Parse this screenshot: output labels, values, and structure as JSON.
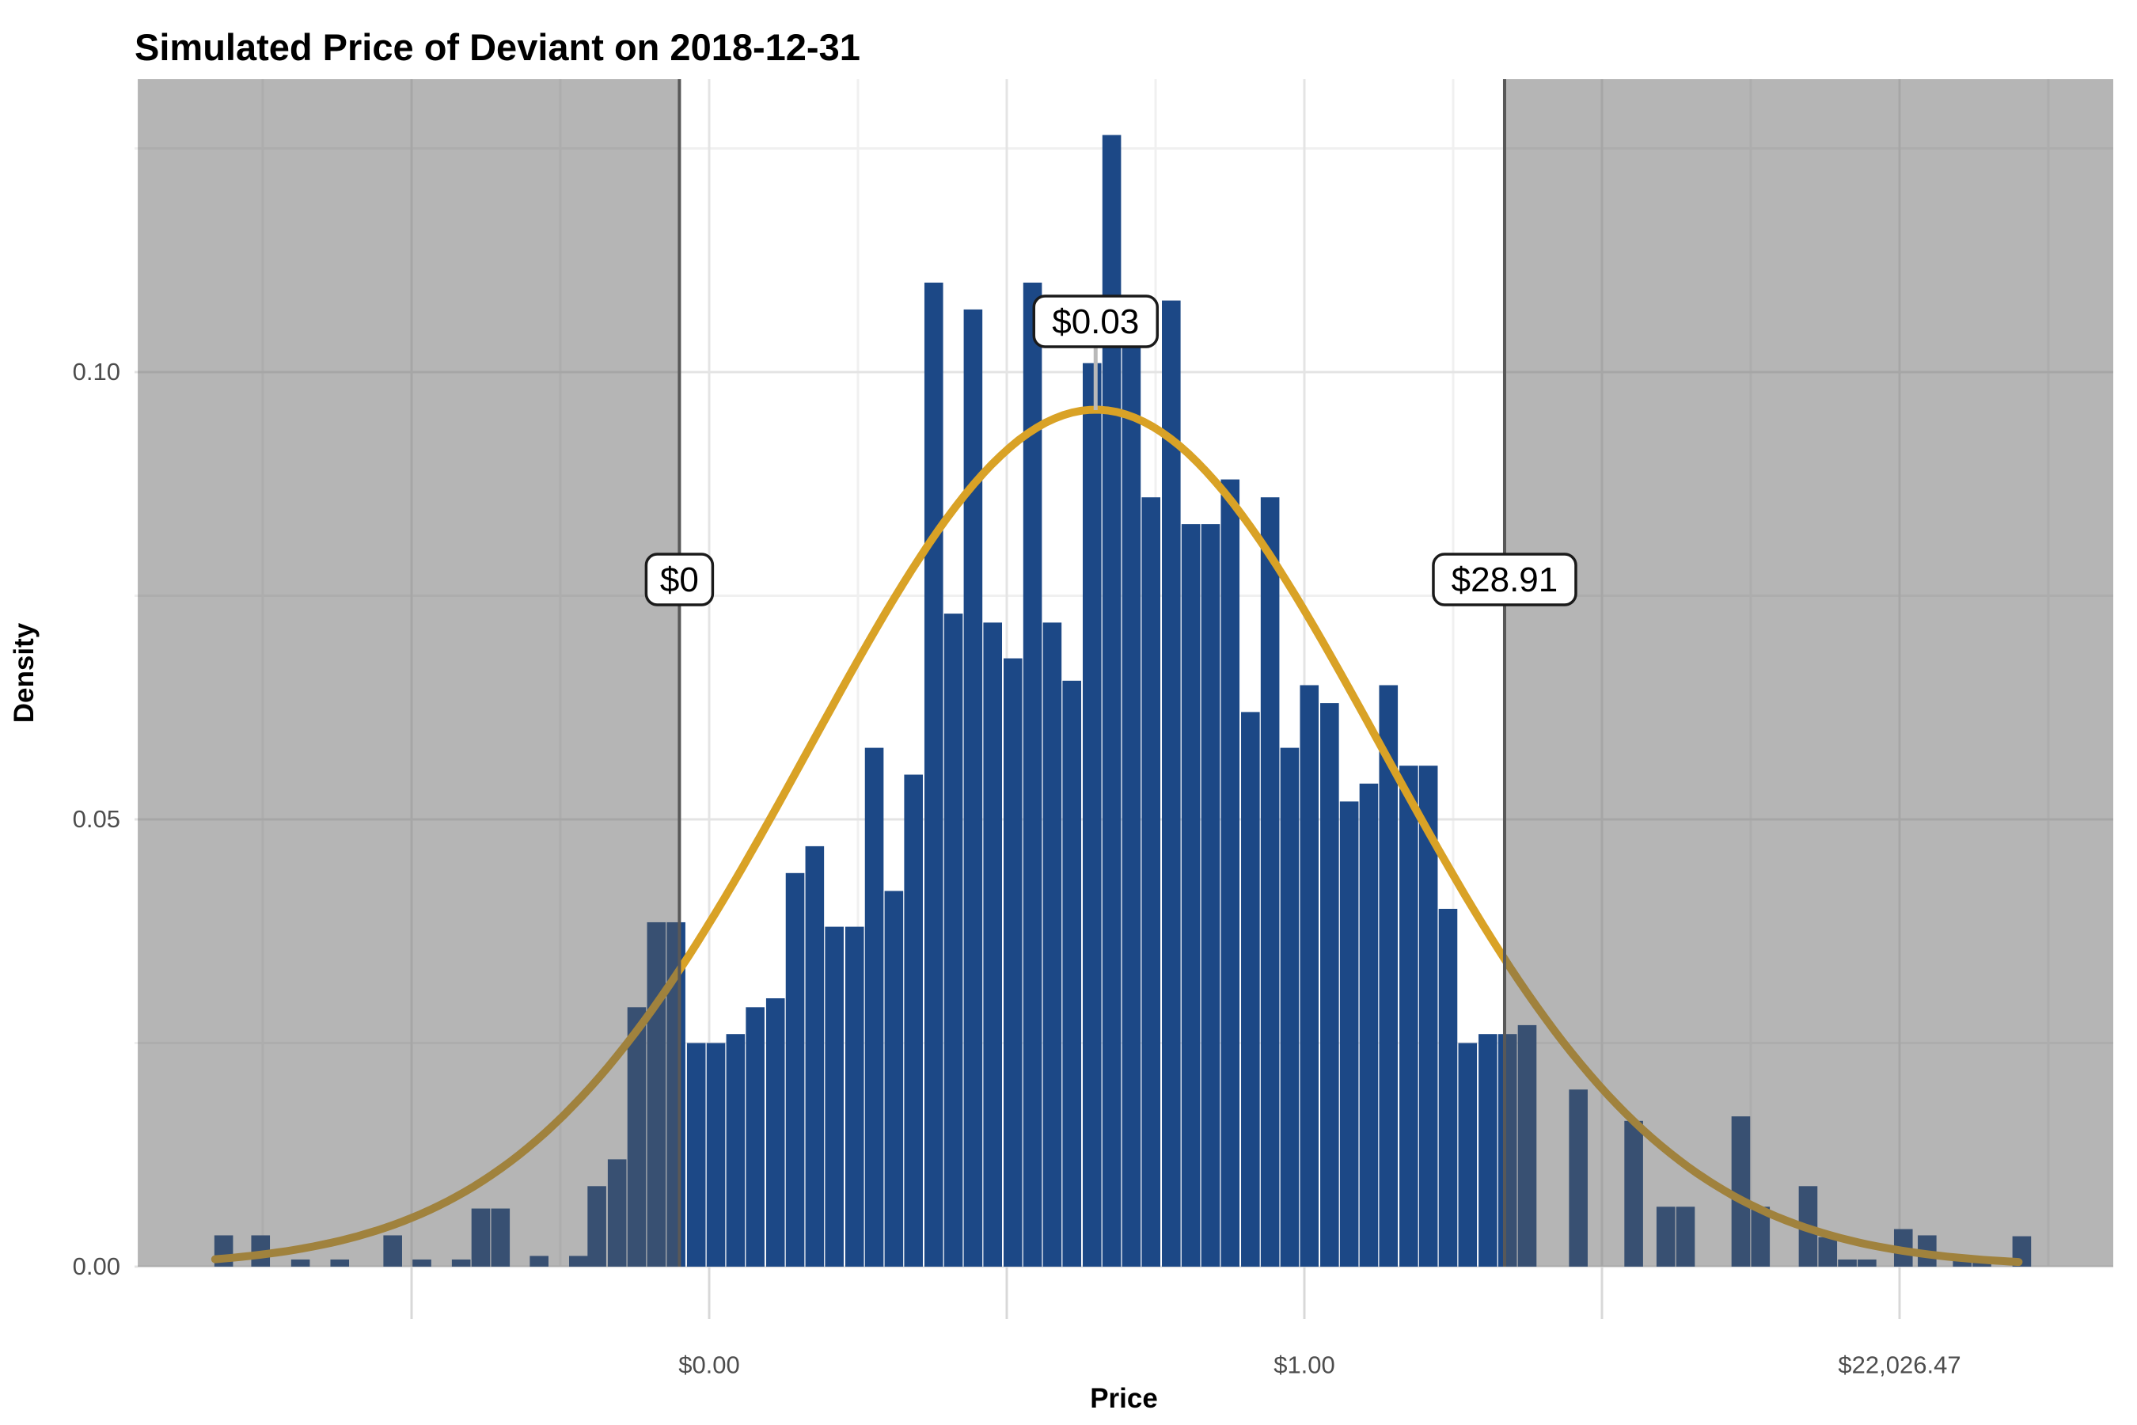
{
  "title": "Simulated Price of Deviant on 2018-12-31",
  "x_axis": {
    "label": "Price",
    "scale": "log-price",
    "major_breaks": [
      {
        "log": -15,
        "label": ""
      },
      {
        "log": -10,
        "label": "$0.00"
      },
      {
        "log": -5,
        "label": ""
      },
      {
        "log": 0,
        "label": "$1.00"
      },
      {
        "log": 5,
        "label": ""
      },
      {
        "log": 10,
        "label": "$22,026.47"
      }
    ],
    "minor_breaks": [
      -17.5,
      -12.5,
      -7.5,
      -2.5,
      2.5,
      7.5,
      12.5
    ],
    "range_log": [
      -19.6,
      13.6
    ]
  },
  "y_axis": {
    "label": "Density",
    "major_breaks": [
      {
        "value": 0.0,
        "label": "0.00"
      },
      {
        "value": 0.05,
        "label": "0.05"
      },
      {
        "value": 0.1,
        "label": "0.10"
      }
    ],
    "minor_breaks": [
      0.025,
      0.075,
      0.125
    ],
    "range": [
      0,
      0.1327
    ]
  },
  "annotations": {
    "lower_bound": {
      "label": "$0",
      "log": -10.5
    },
    "upper_bound": {
      "label": "$28.91",
      "log": 3.364
    },
    "mean": {
      "label": "$0.03",
      "log": -3.507
    }
  },
  "colors": {
    "bar_fill": "#1c4886",
    "curve": "#d9a226",
    "shade_overlay": "rgba(92,92,92,0.45)",
    "bound_line": "#585858",
    "mean_line": "#b9b9b9",
    "grid_major": "#e4e4e4",
    "grid_minor": "#f0f0f0",
    "tick_mark": "#d8d8d8",
    "axis_text": "#4d4d4d",
    "annotation_box_fill": "#ffffff",
    "annotation_box_border": "#1a1a1a"
  },
  "chart_data": {
    "type": "bar",
    "subtype": "histogram_with_density_curve",
    "title": "Simulated Price of Deviant on 2018-12-31",
    "xlabel": "Price",
    "ylabel": "Density",
    "x_units": "natural log of price (axis labeled in dollars)",
    "bin_width_log": 0.327,
    "bins": [
      [
        -18.15,
        0.0035
      ],
      [
        -17.53,
        0.0035
      ],
      [
        -16.86,
        0.0008
      ],
      [
        -16.2,
        0.0008
      ],
      [
        -15.31,
        0.0035
      ],
      [
        -14.82,
        0.0008
      ],
      [
        -14.16,
        0.0008
      ],
      [
        -13.83,
        0.0065
      ],
      [
        -13.5,
        0.0065
      ],
      [
        -12.85,
        0.0012
      ],
      [
        -12.19,
        0.0012
      ],
      [
        -11.88,
        0.009
      ],
      [
        -11.54,
        0.012
      ],
      [
        -11.21,
        0.029
      ],
      [
        -10.88,
        0.0385
      ],
      [
        -10.55,
        0.0385
      ],
      [
        -10.21,
        0.025
      ],
      [
        -9.88,
        0.025
      ],
      [
        -9.55,
        0.026
      ],
      [
        -9.22,
        0.029
      ],
      [
        -8.88,
        0.03
      ],
      [
        -8.55,
        0.044
      ],
      [
        -8.22,
        0.047
      ],
      [
        -7.89,
        0.038
      ],
      [
        -7.55,
        0.038
      ],
      [
        -7.22,
        0.058
      ],
      [
        -6.89,
        0.042
      ],
      [
        -6.56,
        0.055
      ],
      [
        -6.22,
        0.11
      ],
      [
        -5.89,
        0.073
      ],
      [
        -5.56,
        0.107
      ],
      [
        -5.23,
        0.072
      ],
      [
        -4.89,
        0.068
      ],
      [
        -4.56,
        0.11
      ],
      [
        -4.23,
        0.072
      ],
      [
        -3.9,
        0.0655
      ],
      [
        -3.56,
        0.101
      ],
      [
        -3.23,
        0.1265
      ],
      [
        -2.9,
        0.107
      ],
      [
        -2.57,
        0.086
      ],
      [
        -2.23,
        0.108
      ],
      [
        -1.9,
        0.083
      ],
      [
        -1.57,
        0.083
      ],
      [
        -1.24,
        0.088
      ],
      [
        -0.9,
        0.062
      ],
      [
        -0.57,
        0.086
      ],
      [
        -0.24,
        0.058
      ],
      [
        0.09,
        0.065
      ],
      [
        0.43,
        0.063
      ],
      [
        0.76,
        0.052
      ],
      [
        1.09,
        0.054
      ],
      [
        1.42,
        0.065
      ],
      [
        1.76,
        0.056
      ],
      [
        2.09,
        0.056
      ],
      [
        2.42,
        0.04
      ],
      [
        2.75,
        0.025
      ],
      [
        3.09,
        0.026
      ],
      [
        3.42,
        0.026
      ],
      [
        3.75,
        0.027
      ],
      [
        4.61,
        0.0198
      ],
      [
        5.54,
        0.0163
      ],
      [
        6.08,
        0.0067
      ],
      [
        6.41,
        0.0067
      ],
      [
        7.34,
        0.0168
      ],
      [
        7.67,
        0.0067
      ],
      [
        8.47,
        0.009
      ],
      [
        8.8,
        0.0033
      ],
      [
        9.13,
        0.0008
      ],
      [
        9.46,
        0.0008
      ],
      [
        10.07,
        0.0042
      ],
      [
        10.47,
        0.0035
      ],
      [
        11.06,
        0.0008
      ],
      [
        11.39,
        0.0008
      ],
      [
        12.06,
        0.0034
      ]
    ],
    "density_curve": {
      "type": "normal",
      "mean_log": -3.507,
      "sd_log": 4.8,
      "peak_density": 0.0958,
      "range_log": [
        -18.3,
        12.1
      ]
    },
    "shaded_regions_log": [
      [
        -19.6,
        -10.5
      ],
      [
        3.364,
        13.6
      ]
    ],
    "reference_lines": [
      {
        "log": -10.5,
        "label": "$0"
      },
      {
        "log": 3.364,
        "label": "$28.91"
      },
      {
        "log": -3.507,
        "label": "$0.03",
        "style": "mean"
      }
    ],
    "legend": "none",
    "grid": "on",
    "ylim": [
      0,
      0.1327
    ]
  }
}
